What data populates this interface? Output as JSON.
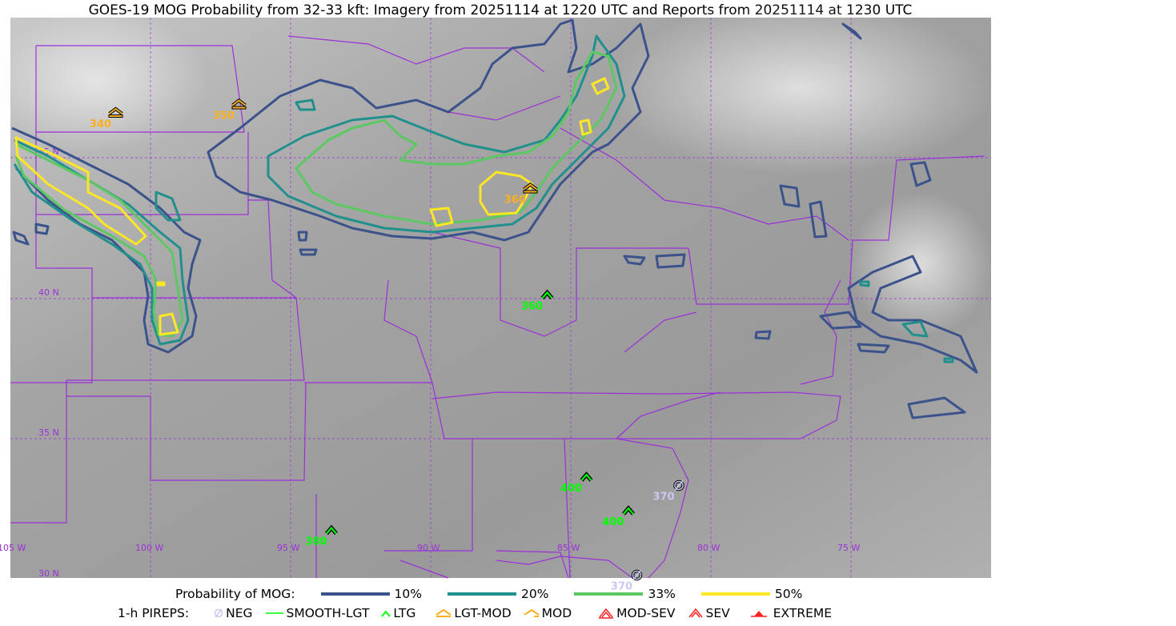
{
  "title": "GOES-19 MOG Probability from 32-33 kft: Imagery from 20251114 at 1220 UTC and Reports from 20251114 at 1230 UTC",
  "map": {
    "lat_labels": [
      "45 N",
      "40 N",
      "35 N",
      "30 N"
    ],
    "lon_labels": [
      "105 W",
      "100 W",
      "95 W",
      "90 W",
      "85 W",
      "80 W",
      "75 W"
    ],
    "border_color": "#9b30d9"
  },
  "legend_prob": {
    "label": "Probability of MOG:",
    "items": [
      {
        "label": "10%",
        "color": "#3b528b"
      },
      {
        "label": "20%",
        "color": "#21908d"
      },
      {
        "label": "33%",
        "color": "#5dc863"
      },
      {
        "label": "50%",
        "color": "#fde725"
      }
    ]
  },
  "legend_pireps": {
    "label": "1-h PIREPS:",
    "items": [
      {
        "label": "NEG",
        "icon": "neg-circle-slash-icon",
        "color": "#c8c8f0"
      },
      {
        "label": "SMOOTH-LGT",
        "icon": "smooth-light-line-icon",
        "color": "#00ff00"
      },
      {
        "label": "LTG",
        "icon": "light-chevron-icon",
        "color": "#00ff00"
      },
      {
        "label": "LGT-MOD",
        "icon": "light-moderate-icon",
        "color": "#ffb020"
      },
      {
        "label": "MOD",
        "icon": "moderate-icon",
        "color": "#ffb020"
      },
      {
        "label": "MOD-SEV",
        "icon": "moderate-severe-icon",
        "color": "#ff2020"
      },
      {
        "label": "SEV",
        "icon": "severe-icon",
        "color": "#ff2020"
      },
      {
        "label": "EXTREME",
        "icon": "extreme-icon",
        "color": "#ff2020"
      }
    ]
  },
  "pireps": [
    {
      "alt": "340",
      "type": "MOD",
      "lat": 46.6,
      "lon": -101.3
    },
    {
      "alt": "350",
      "type": "MOD",
      "lat": 46.9,
      "lon": -96.9
    },
    {
      "alt": "360",
      "type": "MOD",
      "lat": 43.9,
      "lon": -86.5
    },
    {
      "alt": "360",
      "type": "LTG",
      "lat": 40.1,
      "lon": -85.9
    },
    {
      "alt": "400",
      "type": "LTG",
      "lat": 33.6,
      "lon": -84.5
    },
    {
      "alt": "400",
      "type": "LTG",
      "lat": 32.4,
      "lon": -83.0
    },
    {
      "alt": "380",
      "type": "LTG",
      "lat": 31.7,
      "lon": -93.6
    },
    {
      "alt": "370",
      "type": "NEG",
      "lat": 33.3,
      "lon": -81.2
    },
    {
      "alt": "370",
      "type": "NEG",
      "lat": 30.1,
      "lon": -82.7
    }
  ]
}
